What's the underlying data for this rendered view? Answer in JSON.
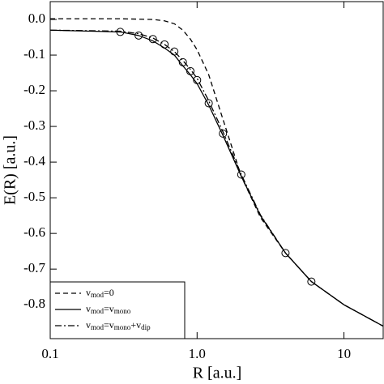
{
  "chart_data": {
    "type": "line",
    "xlabel": "R [a.u.]",
    "ylabel": "E(R) [a.u.]",
    "xscale": "log",
    "xlim": [
      0.1,
      18.5
    ],
    "xticks": [
      0.1,
      {
        "value": 1,
        "label": "1.0"
      },
      10
    ],
    "ylim": [
      -0.895,
      0.05
    ],
    "yticks": [
      {
        "value": 0,
        "label": "0.0"
      },
      -0.1,
      -0.2,
      -0.3,
      -0.4,
      -0.5,
      -0.6,
      -0.7,
      -0.8
    ],
    "legend": "lower left",
    "series": [
      {
        "name": "vmod=0",
        "color": "#000000",
        "dash": "dashed",
        "x": [
          0.1,
          0.3,
          0.5,
          0.6,
          0.7,
          0.8,
          0.9,
          1.0,
          1.2,
          1.5,
          2.0,
          2.7,
          4.0,
          6.0,
          10,
          18.5
        ],
        "values": [
          0.002,
          0.002,
          0.0,
          -0.004,
          -0.012,
          -0.03,
          -0.055,
          -0.085,
          -0.155,
          -0.28,
          -0.44,
          -0.555,
          -0.655,
          -0.735,
          -0.8,
          -0.86
        ]
      },
      {
        "name": "vmod=vmono",
        "color": "#000000",
        "dash": "solid",
        "x": [
          0.1,
          0.3,
          0.4,
          0.5,
          0.6,
          0.7,
          0.8,
          0.9,
          1.0,
          1.2,
          1.5,
          2.0,
          2.7,
          4.0,
          6.0,
          10,
          18.5
        ],
        "values": [
          -0.03,
          -0.035,
          -0.045,
          -0.06,
          -0.08,
          -0.1,
          -0.13,
          -0.155,
          -0.18,
          -0.24,
          -0.325,
          -0.44,
          -0.55,
          -0.655,
          -0.735,
          -0.8,
          -0.86
        ]
      },
      {
        "name": "vmod=vmono+vdip",
        "color": "#000000",
        "dash": "dashdot",
        "x": [
          0.1,
          0.3,
          0.4,
          0.5,
          0.6,
          0.7,
          0.8,
          0.9,
          1.0,
          1.2,
          1.5,
          2.0,
          2.7,
          4.0,
          6.0,
          10,
          18.5
        ],
        "values": [
          -0.03,
          -0.033,
          -0.04,
          -0.052,
          -0.07,
          -0.09,
          -0.115,
          -0.14,
          -0.165,
          -0.228,
          -0.315,
          -0.435,
          -0.548,
          -0.655,
          -0.735,
          -0.8,
          -0.86
        ]
      }
    ],
    "markers": {
      "color": "#000000",
      "x": [
        0.3,
        0.4,
        0.5,
        0.6,
        0.7,
        0.8,
        0.9,
        1.0,
        1.2,
        1.5,
        2.0,
        4.0,
        6.0
      ],
      "values": [
        -0.035,
        -0.045,
        -0.055,
        -0.07,
        -0.09,
        -0.12,
        -0.145,
        -0.17,
        -0.235,
        -0.32,
        -0.435,
        -0.655,
        -0.735
      ]
    }
  }
}
